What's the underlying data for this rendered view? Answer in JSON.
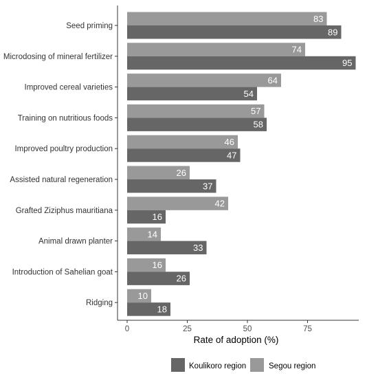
{
  "chart_data": {
    "type": "bar",
    "orientation": "horizontal",
    "categories": [
      "Seed priming",
      "Microdosing of mineral fertilizer",
      "Improved cereal varieties",
      "Training on nutritious foods",
      "Improved poultry production",
      "Assisted natural regeneration",
      "Grafted Ziziphus mauritiana",
      "Animal drawn planter",
      "Introduction of Sahelian goat",
      "Ridging"
    ],
    "series": [
      {
        "name": "Segou region",
        "color": "#999999",
        "values": [
          83,
          74,
          64,
          57,
          46,
          26,
          42,
          14,
          16,
          10
        ]
      },
      {
        "name": "Koulikoro region",
        "color": "#666666",
        "values": [
          89,
          95,
          54,
          58,
          47,
          37,
          16,
          33,
          26,
          18
        ]
      }
    ],
    "xlabel": "Rate of adoption (%)",
    "ylabel": "",
    "xlim": [
      0,
      97
    ],
    "xticks": [
      0,
      25,
      50,
      75
    ],
    "grid": false,
    "legend": {
      "position": "bottom",
      "order": [
        "Koulikoro region",
        "Segou region"
      ]
    }
  }
}
